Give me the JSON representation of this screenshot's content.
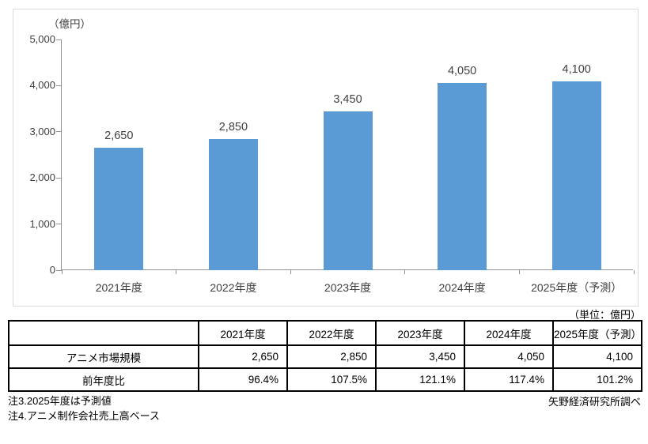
{
  "chart_data": {
    "type": "bar",
    "title": "",
    "unit_label": "（億円）",
    "categories": [
      "2021年度",
      "2022年度",
      "2023年度",
      "2024年度",
      "2025年度（予測）"
    ],
    "values": [
      2650,
      2850,
      3450,
      4050,
      4100
    ],
    "value_labels": [
      "2,650",
      "2,850",
      "3,450",
      "4,050",
      "4,100"
    ],
    "xlabel": "",
    "ylabel": "",
    "ylim": [
      0,
      5000
    ],
    "ytick_interval": 1000,
    "yticks": [
      0,
      1000,
      2000,
      3000,
      4000,
      5000
    ],
    "ytick_labels": [
      "0",
      "1,000",
      "2,000",
      "3,000",
      "4,000",
      "5,000"
    ],
    "grid": false,
    "legend": false,
    "bar_color": "#5B9BD5",
    "axis_color": "#919191"
  },
  "table": {
    "unit_note": "（単位：億円）",
    "columns": [
      "",
      "2021年度",
      "2022年度",
      "2023年度",
      "2024年度",
      "2025年度（予測）"
    ],
    "rows": [
      {
        "label": "アニメ市場規模",
        "values": [
          "2,650",
          "2,850",
          "3,450",
          "4,050",
          "4,100"
        ]
      },
      {
        "label": "前年度比",
        "values": [
          "96.4%",
          "107.5%",
          "121.1%",
          "117.4%",
          "101.2%"
        ]
      }
    ]
  },
  "footnotes": [
    "注3.2025年度は予測値",
    "注4.アニメ制作会社売上高ベース"
  ],
  "source": "矢野経済研究所調べ"
}
